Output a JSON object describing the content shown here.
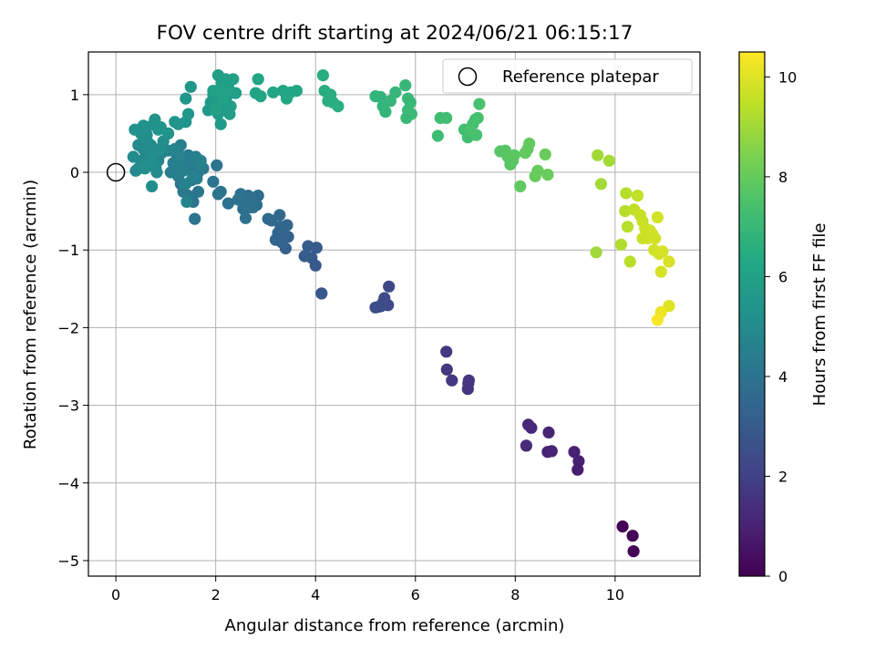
{
  "chart_data": {
    "type": "scatter",
    "title": "FOV centre drift starting at 2024/06/21 06:15:17",
    "xlabel": "Angular distance from reference (arcmin)",
    "ylabel": "Rotation from reference (arcmin)",
    "xlim": [
      -0.55,
      11.7
    ],
    "ylim": [
      -5.2,
      1.55
    ],
    "xticks": [
      0,
      2,
      4,
      6,
      8,
      10
    ],
    "xtick_labels": [
      "0",
      "2",
      "4",
      "6",
      "8",
      "10"
    ],
    "yticks": [
      -5,
      -4,
      -3,
      -2,
      -1,
      0,
      1
    ],
    "ytick_labels": [
      "−5",
      "−4",
      "−3",
      "−2",
      "−1",
      "0",
      "1"
    ],
    "grid": true,
    "legend": {
      "placement": "top-right",
      "entries": [
        "Reference platepar"
      ]
    },
    "reference_point": {
      "label": "Reference platepar",
      "x": 0,
      "y": 0
    },
    "colorbar": {
      "label": "Hours from first FF file",
      "colormap": "viridis",
      "range": [
        0,
        10.5
      ],
      "ticks": [
        0,
        2,
        4,
        6,
        8,
        10
      ],
      "tick_labels": [
        "0",
        "2",
        "4",
        "6",
        "8",
        "10"
      ]
    },
    "points": [
      {
        "x": 10.15,
        "y": -4.56,
        "c": 0.05
      },
      {
        "x": 10.35,
        "y": -4.68,
        "c": 0.1
      },
      {
        "x": 10.37,
        "y": -4.88,
        "c": 0.15
      },
      {
        "x": 9.25,
        "y": -3.83,
        "c": 0.85
      },
      {
        "x": 9.27,
        "y": -3.72,
        "c": 0.9
      },
      {
        "x": 9.18,
        "y": -3.6,
        "c": 0.95
      },
      {
        "x": 8.65,
        "y": -3.6,
        "c": 1.0
      },
      {
        "x": 8.73,
        "y": -3.59,
        "c": 1.05
      },
      {
        "x": 8.67,
        "y": -3.35,
        "c": 1.1
      },
      {
        "x": 8.32,
        "y": -3.29,
        "c": 1.15
      },
      {
        "x": 8.26,
        "y": -3.25,
        "c": 1.2
      },
      {
        "x": 8.22,
        "y": -3.52,
        "c": 1.25
      },
      {
        "x": 7.05,
        "y": -2.79,
        "c": 1.6
      },
      {
        "x": 7.06,
        "y": -2.72,
        "c": 1.62
      },
      {
        "x": 7.07,
        "y": -2.68,
        "c": 1.65
      },
      {
        "x": 6.73,
        "y": -2.68,
        "c": 1.7
      },
      {
        "x": 6.63,
        "y": -2.54,
        "c": 1.72
      },
      {
        "x": 6.62,
        "y": -2.31,
        "c": 1.75
      },
      {
        "x": 5.47,
        "y": -1.47,
        "c": 2.2
      },
      {
        "x": 5.45,
        "y": -1.71,
        "c": 2.25
      },
      {
        "x": 5.38,
        "y": -1.62,
        "c": 2.3
      },
      {
        "x": 5.35,
        "y": -1.68,
        "c": 2.35
      },
      {
        "x": 5.32,
        "y": -1.72,
        "c": 2.4
      },
      {
        "x": 5.27,
        "y": -1.73,
        "c": 2.45
      },
      {
        "x": 5.2,
        "y": -1.74,
        "c": 2.5
      },
      {
        "x": 4.12,
        "y": -1.56,
        "c": 2.85
      },
      {
        "x": 4.0,
        "y": -1.2,
        "c": 2.9
      },
      {
        "x": 3.92,
        "y": -1.1,
        "c": 2.95
      },
      {
        "x": 4.02,
        "y": -0.97,
        "c": 3.0
      },
      {
        "x": 3.85,
        "y": -0.95,
        "c": 3.05
      },
      {
        "x": 3.78,
        "y": -1.08,
        "c": 3.1
      },
      {
        "x": 3.4,
        "y": -0.98,
        "c": 3.15
      },
      {
        "x": 3.45,
        "y": -0.83,
        "c": 3.2
      },
      {
        "x": 3.35,
        "y": -0.82,
        "c": 3.25
      },
      {
        "x": 3.32,
        "y": -0.9,
        "c": 3.3
      },
      {
        "x": 3.25,
        "y": -0.78,
        "c": 3.35
      },
      {
        "x": 3.2,
        "y": -0.87,
        "c": 3.4
      },
      {
        "x": 3.3,
        "y": -0.7,
        "c": 3.45
      },
      {
        "x": 3.43,
        "y": -0.68,
        "c": 3.5
      },
      {
        "x": 3.28,
        "y": -0.55,
        "c": 3.55
      },
      {
        "x": 3.12,
        "y": -0.62,
        "c": 3.6
      },
      {
        "x": 3.05,
        "y": -0.6,
        "c": 3.65
      },
      {
        "x": 2.85,
        "y": -0.3,
        "c": 3.7
      },
      {
        "x": 2.82,
        "y": -0.42,
        "c": 3.72
      },
      {
        "x": 2.75,
        "y": -0.38,
        "c": 3.75
      },
      {
        "x": 2.7,
        "y": -0.45,
        "c": 3.78
      },
      {
        "x": 2.65,
        "y": -0.3,
        "c": 3.8
      },
      {
        "x": 2.62,
        "y": -0.35,
        "c": 3.82
      },
      {
        "x": 2.55,
        "y": -0.4,
        "c": 3.84
      },
      {
        "x": 2.5,
        "y": -0.28,
        "c": 3.86
      },
      {
        "x": 2.55,
        "y": -0.47,
        "c": 3.88
      },
      {
        "x": 2.6,
        "y": -0.59,
        "c": 3.9
      },
      {
        "x": 2.75,
        "y": -0.45,
        "c": 3.92
      },
      {
        "x": 2.45,
        "y": -0.35,
        "c": 3.94
      },
      {
        "x": 2.25,
        "y": -0.4,
        "c": 3.96
      },
      {
        "x": 2.1,
        "y": -0.25,
        "c": 3.98
      },
      {
        "x": 2.05,
        "y": -0.28,
        "c": 4.0
      },
      {
        "x": 2.02,
        "y": 0.09,
        "c": 4.02
      },
      {
        "x": 1.95,
        "y": -0.12,
        "c": 4.04
      },
      {
        "x": 1.65,
        "y": -0.25,
        "c": 4.06
      },
      {
        "x": 1.55,
        "y": -0.38,
        "c": 4.08
      },
      {
        "x": 1.58,
        "y": -0.6,
        "c": 4.1
      },
      {
        "x": 1.45,
        "y": -0.3,
        "c": 4.12
      },
      {
        "x": 1.35,
        "y": -0.25,
        "c": 4.14
      },
      {
        "x": 1.3,
        "y": -0.15,
        "c": 4.16
      },
      {
        "x": 1.25,
        "y": -0.05,
        "c": 4.18
      },
      {
        "x": 1.55,
        "y": 0.0,
        "c": 4.2
      },
      {
        "x": 1.6,
        "y": 0.1,
        "c": 4.22
      },
      {
        "x": 1.48,
        "y": 0.08,
        "c": 4.24
      },
      {
        "x": 1.52,
        "y": -0.1,
        "c": 4.26
      },
      {
        "x": 1.4,
        "y": 0.05,
        "c": 4.28
      },
      {
        "x": 1.35,
        "y": 0.2,
        "c": 4.3
      },
      {
        "x": 1.65,
        "y": 0.0,
        "c": 4.32
      },
      {
        "x": 1.7,
        "y": 0.15,
        "c": 4.34
      },
      {
        "x": 1.75,
        "y": 0.05,
        "c": 4.36
      },
      {
        "x": 1.62,
        "y": -0.08,
        "c": 4.38
      },
      {
        "x": 1.5,
        "y": 0.15,
        "c": 4.4
      },
      {
        "x": 1.45,
        "y": 0.22,
        "c": 4.42
      },
      {
        "x": 1.3,
        "y": 0.35,
        "c": 4.44
      },
      {
        "x": 1.2,
        "y": 0.25,
        "c": 4.46
      },
      {
        "x": 1.15,
        "y": 0.12,
        "c": 4.48
      },
      {
        "x": 1.1,
        "y": 0.0,
        "c": 4.5
      },
      {
        "x": 1.25,
        "y": 0.1,
        "c": 4.52
      },
      {
        "x": 1.22,
        "y": -0.02,
        "c": 4.54
      },
      {
        "x": 1.35,
        "y": 0.02,
        "c": 4.56
      },
      {
        "x": 1.6,
        "y": 0.2,
        "c": 4.58
      },
      {
        "x": 1.7,
        "y": 0.1,
        "c": 4.6
      },
      {
        "x": 1.4,
        "y": -0.15,
        "c": 4.62
      },
      {
        "x": 1.55,
        "y": -0.05,
        "c": 4.64
      },
      {
        "x": 1.28,
        "y": 0.2,
        "c": 4.66
      },
      {
        "x": 1.42,
        "y": -0.38,
        "c": 4.68
      },
      {
        "x": 1.18,
        "y": 0.3,
        "c": 4.7
      },
      {
        "x": 1.05,
        "y": 0.28,
        "c": 4.72
      },
      {
        "x": 0.92,
        "y": 0.25,
        "c": 4.74
      },
      {
        "x": 0.85,
        "y": 0.15,
        "c": 4.76
      },
      {
        "x": 0.8,
        "y": 0.05,
        "c": 4.78
      },
      {
        "x": 0.75,
        "y": 0.2,
        "c": 4.8
      },
      {
        "x": 0.7,
        "y": 0.35,
        "c": 4.82
      },
      {
        "x": 0.65,
        "y": 0.1,
        "c": 4.84
      },
      {
        "x": 0.6,
        "y": 0.25,
        "c": 4.86
      },
      {
        "x": 0.55,
        "y": 0.3,
        "c": 4.88
      },
      {
        "x": 0.5,
        "y": 0.15,
        "c": 4.9
      },
      {
        "x": 0.45,
        "y": 0.05,
        "c": 4.92
      },
      {
        "x": 0.4,
        "y": 0.02,
        "c": 4.94
      },
      {
        "x": 0.35,
        "y": 0.2,
        "c": 4.96
      },
      {
        "x": 0.45,
        "y": 0.35,
        "c": 4.98
      },
      {
        "x": 0.55,
        "y": 0.42,
        "c": 5.0
      },
      {
        "x": 0.65,
        "y": 0.38,
        "c": 5.02
      },
      {
        "x": 0.72,
        "y": 0.25,
        "c": 5.04
      },
      {
        "x": 0.78,
        "y": 0.1,
        "c": 5.06
      },
      {
        "x": 0.82,
        "y": 0.0,
        "c": 5.08
      },
      {
        "x": 0.88,
        "y": 0.3,
        "c": 5.1
      },
      {
        "x": 0.95,
        "y": 0.4,
        "c": 5.12
      },
      {
        "x": 0.72,
        "y": -0.18,
        "c": 5.14
      },
      {
        "x": 0.68,
        "y": 0.12,
        "c": 5.16
      },
      {
        "x": 0.58,
        "y": 0.05,
        "c": 5.18
      },
      {
        "x": 0.62,
        "y": 0.48,
        "c": 5.2
      },
      {
        "x": 0.5,
        "y": 0.5,
        "c": 5.22
      },
      {
        "x": 0.38,
        "y": 0.55,
        "c": 5.24
      },
      {
        "x": 0.55,
        "y": 0.6,
        "c": 5.26
      },
      {
        "x": 0.62,
        "y": 0.58,
        "c": 5.28
      },
      {
        "x": 0.75,
        "y": 0.62,
        "c": 5.3
      },
      {
        "x": 0.78,
        "y": 0.68,
        "c": 5.32
      },
      {
        "x": 0.85,
        "y": 0.55,
        "c": 5.34
      },
      {
        "x": 0.9,
        "y": 0.58,
        "c": 5.36
      },
      {
        "x": 1.05,
        "y": 0.5,
        "c": 5.38
      },
      {
        "x": 1.18,
        "y": 0.65,
        "c": 5.4
      },
      {
        "x": 1.25,
        "y": 0.62,
        "c": 5.42
      },
      {
        "x": 1.4,
        "y": 0.65,
        "c": 5.44
      },
      {
        "x": 1.45,
        "y": 0.75,
        "c": 5.46
      },
      {
        "x": 1.4,
        "y": 0.95,
        "c": 5.48
      },
      {
        "x": 1.5,
        "y": 1.1,
        "c": 5.5
      },
      {
        "x": 1.85,
        "y": 0.8,
        "c": 5.6
      },
      {
        "x": 1.9,
        "y": 0.9,
        "c": 5.62
      },
      {
        "x": 1.95,
        "y": 1.0,
        "c": 5.64
      },
      {
        "x": 2.0,
        "y": 0.95,
        "c": 5.66
      },
      {
        "x": 2.05,
        "y": 0.75,
        "c": 5.68
      },
      {
        "x": 2.1,
        "y": 0.62,
        "c": 5.7
      },
      {
        "x": 2.15,
        "y": 0.85,
        "c": 5.72
      },
      {
        "x": 2.2,
        "y": 0.92,
        "c": 5.74
      },
      {
        "x": 2.25,
        "y": 1.0,
        "c": 5.76
      },
      {
        "x": 2.3,
        "y": 0.85,
        "c": 5.78
      },
      {
        "x": 2.28,
        "y": 0.75,
        "c": 5.8
      },
      {
        "x": 2.18,
        "y": 1.05,
        "c": 5.82
      },
      {
        "x": 2.12,
        "y": 1.15,
        "c": 5.84
      },
      {
        "x": 2.05,
        "y": 1.25,
        "c": 5.86
      },
      {
        "x": 2.2,
        "y": 1.2,
        "c": 5.88
      },
      {
        "x": 2.25,
        "y": 1.1,
        "c": 5.9
      },
      {
        "x": 2.4,
        "y": 1.02,
        "c": 5.92
      },
      {
        "x": 2.35,
        "y": 1.2,
        "c": 5.94
      },
      {
        "x": 1.95,
        "y": 1.05,
        "c": 5.96
      },
      {
        "x": 2.0,
        "y": 0.82,
        "c": 5.98
      },
      {
        "x": 2.08,
        "y": 1.05,
        "c": 6.0
      },
      {
        "x": 2.15,
        "y": 0.95,
        "c": 6.02
      },
      {
        "x": 2.8,
        "y": 1.02,
        "c": 6.1
      },
      {
        "x": 2.85,
        "y": 1.2,
        "c": 6.12
      },
      {
        "x": 2.9,
        "y": 0.98,
        "c": 6.14
      },
      {
        "x": 3.15,
        "y": 1.03,
        "c": 6.16
      },
      {
        "x": 3.35,
        "y": 1.05,
        "c": 6.18
      },
      {
        "x": 3.42,
        "y": 0.95,
        "c": 6.2
      },
      {
        "x": 3.5,
        "y": 1.03,
        "c": 6.22
      },
      {
        "x": 3.62,
        "y": 1.05,
        "c": 6.24
      },
      {
        "x": 4.15,
        "y": 1.25,
        "c": 6.5
      },
      {
        "x": 4.18,
        "y": 1.05,
        "c": 6.52
      },
      {
        "x": 4.3,
        "y": 1.0,
        "c": 6.54
      },
      {
        "x": 4.35,
        "y": 0.9,
        "c": 6.56
      },
      {
        "x": 4.25,
        "y": 0.92,
        "c": 6.58
      },
      {
        "x": 4.45,
        "y": 0.85,
        "c": 6.6
      },
      {
        "x": 5.2,
        "y": 0.98,
        "c": 6.8
      },
      {
        "x": 5.3,
        "y": 0.97,
        "c": 6.82
      },
      {
        "x": 5.35,
        "y": 0.85,
        "c": 6.84
      },
      {
        "x": 5.4,
        "y": 0.78,
        "c": 6.86
      },
      {
        "x": 5.5,
        "y": 0.92,
        "c": 6.88
      },
      {
        "x": 5.6,
        "y": 1.03,
        "c": 6.9
      },
      {
        "x": 5.8,
        "y": 1.12,
        "c": 6.95
      },
      {
        "x": 5.85,
        "y": 0.95,
        "c": 6.97
      },
      {
        "x": 5.9,
        "y": 0.9,
        "c": 6.99
      },
      {
        "x": 5.85,
        "y": 0.8,
        "c": 7.01
      },
      {
        "x": 5.82,
        "y": 0.7,
        "c": 7.03
      },
      {
        "x": 5.92,
        "y": 0.75,
        "c": 7.05
      },
      {
        "x": 6.45,
        "y": 0.47,
        "c": 7.2
      },
      {
        "x": 6.5,
        "y": 0.7,
        "c": 7.22
      },
      {
        "x": 6.62,
        "y": 0.7,
        "c": 7.24
      },
      {
        "x": 6.98,
        "y": 0.55,
        "c": 7.3
      },
      {
        "x": 7.05,
        "y": 0.45,
        "c": 7.32
      },
      {
        "x": 7.15,
        "y": 0.62,
        "c": 7.34
      },
      {
        "x": 7.2,
        "y": 0.68,
        "c": 7.36
      },
      {
        "x": 7.25,
        "y": 0.7,
        "c": 7.38
      },
      {
        "x": 7.22,
        "y": 0.48,
        "c": 7.4
      },
      {
        "x": 7.28,
        "y": 0.88,
        "c": 7.42
      },
      {
        "x": 7.1,
        "y": 0.55,
        "c": 7.44
      },
      {
        "x": 7.7,
        "y": 0.27,
        "c": 7.7
      },
      {
        "x": 7.8,
        "y": 0.28,
        "c": 7.72
      },
      {
        "x": 7.85,
        "y": 0.2,
        "c": 7.74
      },
      {
        "x": 7.9,
        "y": 0.1,
        "c": 7.76
      },
      {
        "x": 7.95,
        "y": 0.15,
        "c": 7.78
      },
      {
        "x": 7.98,
        "y": 0.22,
        "c": 7.8
      },
      {
        "x": 8.1,
        "y": -0.18,
        "c": 7.9
      },
      {
        "x": 8.2,
        "y": 0.25,
        "c": 7.92
      },
      {
        "x": 8.25,
        "y": 0.3,
        "c": 7.94
      },
      {
        "x": 8.28,
        "y": 0.37,
        "c": 7.96
      },
      {
        "x": 8.4,
        "y": -0.05,
        "c": 8.0
      },
      {
        "x": 8.45,
        "y": 0.02,
        "c": 8.02
      },
      {
        "x": 8.6,
        "y": 0.23,
        "c": 8.05
      },
      {
        "x": 8.65,
        "y": -0.03,
        "c": 8.07
      },
      {
        "x": 9.62,
        "y": -1.03,
        "c": 9.0
      },
      {
        "x": 9.65,
        "y": 0.22,
        "c": 9.02
      },
      {
        "x": 9.72,
        "y": -0.15,
        "c": 9.04
      },
      {
        "x": 9.88,
        "y": 0.15,
        "c": 9.06
      },
      {
        "x": 10.12,
        "y": -0.93,
        "c": 9.3
      },
      {
        "x": 10.2,
        "y": -0.5,
        "c": 9.32
      },
      {
        "x": 10.22,
        "y": -0.27,
        "c": 9.34
      },
      {
        "x": 10.25,
        "y": -0.7,
        "c": 9.36
      },
      {
        "x": 10.3,
        "y": -1.15,
        "c": 9.4
      },
      {
        "x": 10.38,
        "y": -0.48,
        "c": 9.5
      },
      {
        "x": 10.45,
        "y": -0.3,
        "c": 9.52
      },
      {
        "x": 10.5,
        "y": -0.55,
        "c": 9.6
      },
      {
        "x": 10.55,
        "y": -0.63,
        "c": 9.62
      },
      {
        "x": 10.55,
        "y": -0.85,
        "c": 9.64
      },
      {
        "x": 10.6,
        "y": -0.72,
        "c": 9.66
      },
      {
        "x": 10.62,
        "y": -0.82,
        "c": 9.68
      },
      {
        "x": 10.65,
        "y": -0.85,
        "c": 9.7
      },
      {
        "x": 10.7,
        "y": -0.75,
        "c": 9.72
      },
      {
        "x": 10.75,
        "y": -0.8,
        "c": 9.74
      },
      {
        "x": 10.8,
        "y": -0.85,
        "c": 9.76
      },
      {
        "x": 10.78,
        "y": -1.0,
        "c": 9.78
      },
      {
        "x": 10.85,
        "y": -0.58,
        "c": 9.8
      },
      {
        "x": 10.88,
        "y": -1.05,
        "c": 9.82
      },
      {
        "x": 10.95,
        "y": -1.02,
        "c": 9.84
      },
      {
        "x": 10.92,
        "y": -1.28,
        "c": 9.86
      },
      {
        "x": 11.08,
        "y": -1.15,
        "c": 9.9
      },
      {
        "x": 11.08,
        "y": -1.72,
        "c": 10.0
      },
      {
        "x": 10.92,
        "y": -1.8,
        "c": 10.2
      },
      {
        "x": 10.85,
        "y": -1.9,
        "c": 10.4
      }
    ]
  }
}
